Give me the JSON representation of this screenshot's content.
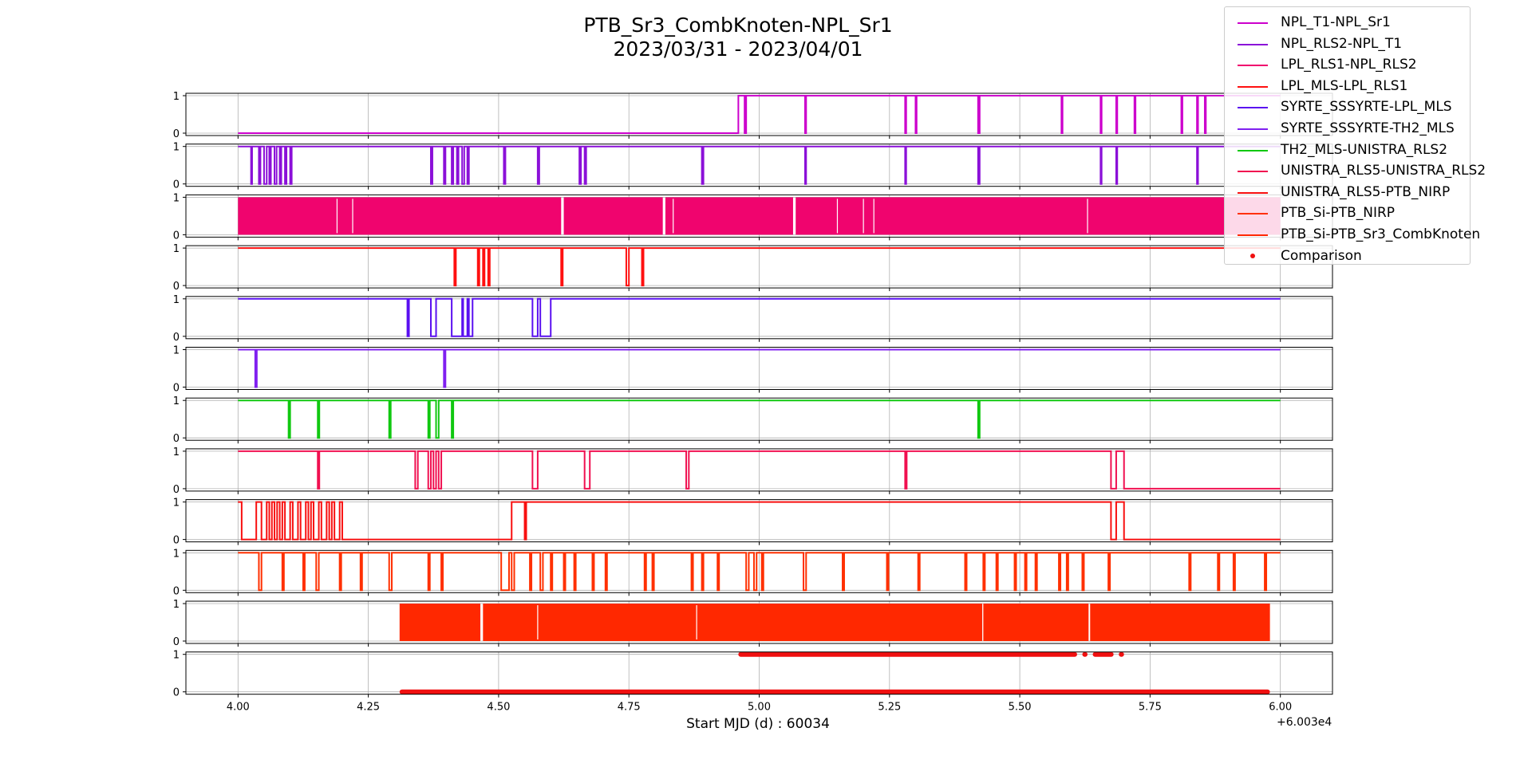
{
  "chart_data": {
    "type": "line",
    "title_line1": "PTB_Sr3_CombKnoten-NPL_Sr1",
    "title_line2": "2023/03/31 - 2023/04/01",
    "xlabel": "Start MJD (d) : 60034",
    "x_offset_label": "+6.003e4",
    "xlim": [
      3.9,
      6.1
    ],
    "x_ticks": [
      "4.00",
      "4.25",
      "4.50",
      "4.75",
      "5.00",
      "5.25",
      "5.50",
      "5.75",
      "6.00"
    ],
    "x_tick_values": [
      4.0,
      4.25,
      4.5,
      4.75,
      5.0,
      5.25,
      5.5,
      5.75,
      6.0
    ],
    "ylim": [
      0,
      1
    ],
    "y_ticks": [
      "0",
      "1"
    ],
    "grid": true,
    "legend_placement": "top-right",
    "series": [
      {
        "name": "NPL_T1-NPL_Sr1",
        "color": "#cc00cc",
        "style": "step",
        "segments": [
          [
            4.0,
            0
          ],
          [
            4.96,
            1
          ],
          [
            4.972,
            0
          ],
          [
            4.975,
            1
          ],
          [
            5.088,
            0
          ],
          [
            5.09,
            1
          ],
          [
            5.28,
            0
          ],
          [
            5.282,
            1
          ],
          [
            5.3,
            0
          ],
          [
            5.302,
            1
          ],
          [
            5.42,
            0
          ],
          [
            5.423,
            1
          ],
          [
            5.58,
            0
          ],
          [
            5.582,
            1
          ],
          [
            5.655,
            0
          ],
          [
            5.657,
            1
          ],
          [
            5.685,
            0
          ],
          [
            5.687,
            1
          ],
          [
            5.72,
            0
          ],
          [
            5.722,
            1
          ],
          [
            5.81,
            0
          ],
          [
            5.812,
            1
          ],
          [
            5.84,
            0
          ],
          [
            5.842,
            1
          ],
          [
            5.855,
            0
          ],
          [
            5.857,
            1
          ],
          [
            6.0,
            1
          ]
        ]
      },
      {
        "name": "NPL_RLS2-NPL_T1",
        "color": "#8b10d8",
        "style": "step",
        "segments": [
          [
            4.0,
            1
          ],
          [
            4.025,
            0
          ],
          [
            4.027,
            1
          ],
          [
            4.04,
            0
          ],
          [
            4.043,
            1
          ],
          [
            4.05,
            0
          ],
          [
            4.055,
            1
          ],
          [
            4.06,
            0
          ],
          [
            4.063,
            1
          ],
          [
            4.07,
            0
          ],
          [
            4.074,
            1
          ],
          [
            4.08,
            0
          ],
          [
            4.083,
            1
          ],
          [
            4.09,
            0
          ],
          [
            4.093,
            1
          ],
          [
            4.1,
            0
          ],
          [
            4.103,
            1
          ],
          [
            4.37,
            0
          ],
          [
            4.373,
            1
          ],
          [
            4.395,
            0
          ],
          [
            4.398,
            1
          ],
          [
            4.41,
            0
          ],
          [
            4.413,
            1
          ],
          [
            4.42,
            0
          ],
          [
            4.423,
            1
          ],
          [
            4.43,
            0
          ],
          [
            4.434,
            1
          ],
          [
            4.44,
            0
          ],
          [
            4.443,
            1
          ],
          [
            4.51,
            0
          ],
          [
            4.513,
            1
          ],
          [
            4.575,
            0
          ],
          [
            4.578,
            1
          ],
          [
            4.655,
            0
          ],
          [
            4.658,
            1
          ],
          [
            4.665,
            0
          ],
          [
            4.668,
            1
          ],
          [
            4.89,
            0
          ],
          [
            4.893,
            1
          ],
          [
            5.088,
            0
          ],
          [
            5.09,
            1
          ],
          [
            5.28,
            0
          ],
          [
            5.282,
            1
          ],
          [
            5.42,
            0
          ],
          [
            5.423,
            1
          ],
          [
            5.655,
            0
          ],
          [
            5.657,
            1
          ],
          [
            5.685,
            0
          ],
          [
            5.687,
            1
          ],
          [
            5.84,
            0
          ],
          [
            5.842,
            1
          ],
          [
            6.0,
            1
          ]
        ]
      },
      {
        "name": "LPL_RLS1-NPL_RLS2",
        "color": "#f0046e",
        "style": "band",
        "bands": [
          [
            4.0,
            4.62
          ],
          [
            4.625,
            4.815
          ],
          [
            4.82,
            5.065
          ],
          [
            5.07,
            6.0
          ]
        ],
        "gaps": [
          4.19,
          4.22,
          4.835,
          5.15,
          5.2,
          5.22,
          5.63
        ]
      },
      {
        "name": "LPL_MLS-LPL_RLS1",
        "color": "#ff1010",
        "style": "step",
        "segments": [
          [
            4.0,
            1
          ],
          [
            4.415,
            0
          ],
          [
            4.418,
            1
          ],
          [
            4.46,
            0
          ],
          [
            4.463,
            1
          ],
          [
            4.47,
            0
          ],
          [
            4.473,
            1
          ],
          [
            4.48,
            0
          ],
          [
            4.483,
            1
          ],
          [
            4.62,
            0
          ],
          [
            4.623,
            1
          ],
          [
            4.745,
            0
          ],
          [
            4.75,
            1
          ],
          [
            4.775,
            0
          ],
          [
            4.778,
            1
          ],
          [
            6.0,
            1
          ]
        ]
      },
      {
        "name": "SYRTE_SSSYRTE-LPL_MLS",
        "color": "#5a10f0",
        "style": "step",
        "segments": [
          [
            4.0,
            1
          ],
          [
            4.325,
            0
          ],
          [
            4.328,
            1
          ],
          [
            4.37,
            0
          ],
          [
            4.38,
            1
          ],
          [
            4.41,
            0
          ],
          [
            4.43,
            1
          ],
          [
            4.432,
            0
          ],
          [
            4.44,
            1
          ],
          [
            4.443,
            0
          ],
          [
            4.45,
            1
          ],
          [
            4.565,
            0
          ],
          [
            4.575,
            1
          ],
          [
            4.58,
            0
          ],
          [
            4.6,
            1
          ],
          [
            6.0,
            1
          ]
        ]
      },
      {
        "name": "SYRTE_SSSYRTE-TH2_MLS",
        "color": "#8020f0",
        "style": "step",
        "segments": [
          [
            4.0,
            1
          ],
          [
            4.033,
            0
          ],
          [
            4.036,
            1
          ],
          [
            4.395,
            0
          ],
          [
            4.398,
            1
          ],
          [
            6.0,
            1
          ]
        ]
      },
      {
        "name": "TH2_MLS-UNISTRA_RLS2",
        "color": "#10c810",
        "style": "step",
        "segments": [
          [
            4.0,
            1
          ],
          [
            4.097,
            0
          ],
          [
            4.1,
            1
          ],
          [
            4.153,
            0
          ],
          [
            4.156,
            1
          ],
          [
            4.29,
            0
          ],
          [
            4.293,
            1
          ],
          [
            4.365,
            0
          ],
          [
            4.368,
            1
          ],
          [
            4.38,
            0
          ],
          [
            4.385,
            1
          ],
          [
            4.41,
            0
          ],
          [
            4.413,
            1
          ],
          [
            5.42,
            0
          ],
          [
            5.423,
            1
          ],
          [
            6.0,
            1
          ]
        ]
      },
      {
        "name": "UNISTRA_RLS5-UNISTRA_RLS2",
        "color": "#f01050",
        "style": "step",
        "segments": [
          [
            4.0,
            1
          ],
          [
            4.153,
            0
          ],
          [
            4.156,
            1
          ],
          [
            4.34,
            0
          ],
          [
            4.345,
            1
          ],
          [
            4.365,
            0
          ],
          [
            4.37,
            1
          ],
          [
            4.375,
            0
          ],
          [
            4.38,
            1
          ],
          [
            4.385,
            0
          ],
          [
            4.39,
            1
          ],
          [
            4.565,
            0
          ],
          [
            4.575,
            1
          ],
          [
            4.665,
            0
          ],
          [
            4.675,
            1
          ],
          [
            4.86,
            0
          ],
          [
            4.865,
            1
          ],
          [
            5.28,
            0
          ],
          [
            5.283,
            1
          ],
          [
            5.675,
            0
          ],
          [
            5.685,
            1
          ],
          [
            5.7,
            0
          ],
          [
            6.0,
            0
          ]
        ]
      },
      {
        "name": "UNISTRA_RLS5-PTB_NIRP",
        "color": "#f81010",
        "style": "step",
        "segments": [
          [
            4.0,
            1
          ],
          [
            4.007,
            0
          ],
          [
            4.035,
            1
          ],
          [
            4.045,
            0
          ],
          [
            4.055,
            1
          ],
          [
            4.06,
            0
          ],
          [
            4.065,
            1
          ],
          [
            4.07,
            0
          ],
          [
            4.075,
            1
          ],
          [
            4.08,
            0
          ],
          [
            4.085,
            1
          ],
          [
            4.09,
            0
          ],
          [
            4.1,
            1
          ],
          [
            4.105,
            0
          ],
          [
            4.115,
            1
          ],
          [
            4.12,
            0
          ],
          [
            4.13,
            1
          ],
          [
            4.135,
            0
          ],
          [
            4.14,
            1
          ],
          [
            4.145,
            0
          ],
          [
            4.155,
            1
          ],
          [
            4.16,
            0
          ],
          [
            4.17,
            1
          ],
          [
            4.175,
            0
          ],
          [
            4.18,
            1
          ],
          [
            4.185,
            0
          ],
          [
            4.195,
            1
          ],
          [
            4.2,
            0
          ],
          [
            4.525,
            1
          ],
          [
            4.55,
            0
          ],
          [
            4.553,
            1
          ],
          [
            5.675,
            0
          ],
          [
            5.685,
            1
          ],
          [
            5.7,
            0
          ],
          [
            6.0,
            0
          ]
        ]
      },
      {
        "name": "PTB_Si-PTB_NIRP",
        "color": "#ff3000",
        "style": "step",
        "segments": [
          [
            4.0,
            1
          ],
          [
            4.04,
            0
          ],
          [
            4.045,
            1
          ],
          [
            4.085,
            0
          ],
          [
            4.088,
            1
          ],
          [
            4.125,
            0
          ],
          [
            4.128,
            1
          ],
          [
            4.15,
            0
          ],
          [
            4.155,
            1
          ],
          [
            4.195,
            0
          ],
          [
            4.198,
            1
          ],
          [
            4.235,
            0
          ],
          [
            4.238,
            1
          ],
          [
            4.29,
            0
          ],
          [
            4.295,
            1
          ],
          [
            4.365,
            0
          ],
          [
            4.368,
            1
          ],
          [
            4.39,
            0
          ],
          [
            4.393,
            1
          ],
          [
            4.505,
            0
          ],
          [
            4.52,
            1
          ],
          [
            4.525,
            0
          ],
          [
            4.53,
            1
          ],
          [
            4.56,
            0
          ],
          [
            4.563,
            1
          ],
          [
            4.58,
            0
          ],
          [
            4.585,
            1
          ],
          [
            4.6,
            0
          ],
          [
            4.603,
            1
          ],
          [
            4.625,
            0
          ],
          [
            4.628,
            1
          ],
          [
            4.645,
            0
          ],
          [
            4.648,
            1
          ],
          [
            4.68,
            0
          ],
          [
            4.683,
            1
          ],
          [
            4.705,
            0
          ],
          [
            4.708,
            1
          ],
          [
            4.78,
            0
          ],
          [
            4.783,
            1
          ],
          [
            4.795,
            0
          ],
          [
            4.798,
            1
          ],
          [
            4.87,
            0
          ],
          [
            4.873,
            1
          ],
          [
            4.89,
            0
          ],
          [
            4.893,
            1
          ],
          [
            4.92,
            0
          ],
          [
            4.923,
            1
          ],
          [
            4.975,
            0
          ],
          [
            4.98,
            1
          ],
          [
            4.99,
            0
          ],
          [
            4.995,
            1
          ],
          [
            5.005,
            0
          ],
          [
            5.008,
            1
          ],
          [
            5.085,
            0
          ],
          [
            5.09,
            1
          ],
          [
            5.16,
            0
          ],
          [
            5.163,
            1
          ],
          [
            5.245,
            0
          ],
          [
            5.248,
            1
          ],
          [
            5.305,
            0
          ],
          [
            5.308,
            1
          ],
          [
            5.395,
            0
          ],
          [
            5.398,
            1
          ],
          [
            5.43,
            0
          ],
          [
            5.433,
            1
          ],
          [
            5.455,
            0
          ],
          [
            5.458,
            1
          ],
          [
            5.49,
            0
          ],
          [
            5.493,
            1
          ],
          [
            5.51,
            0
          ],
          [
            5.513,
            1
          ],
          [
            5.53,
            0
          ],
          [
            5.533,
            1
          ],
          [
            5.575,
            0
          ],
          [
            5.578,
            1
          ],
          [
            5.59,
            0
          ],
          [
            5.593,
            1
          ],
          [
            5.62,
            0
          ],
          [
            5.623,
            1
          ],
          [
            5.67,
            0
          ],
          [
            5.673,
            1
          ],
          [
            5.825,
            0
          ],
          [
            5.828,
            1
          ],
          [
            5.88,
            0
          ],
          [
            5.883,
            1
          ],
          [
            5.91,
            0
          ],
          [
            5.913,
            1
          ],
          [
            5.97,
            0
          ],
          [
            5.973,
            1
          ],
          [
            6.0,
            1
          ]
        ]
      },
      {
        "name": "PTB_Si-PTB_Sr3_CombKnoten",
        "color": "#ff2800",
        "style": "band",
        "bands": [
          [
            4.31,
            4.465
          ],
          [
            4.47,
            5.428
          ],
          [
            5.43,
            5.632
          ],
          [
            5.635,
            5.98
          ]
        ],
        "gaps": [
          4.575,
          4.88
        ]
      },
      {
        "name": "Comparison",
        "color": "#f01010",
        "style": "dots",
        "bands": [
          [
            4.31,
            5.98
          ]
        ],
        "top_bands": [
          [
            4.96,
            5.61
          ],
          [
            5.62,
            5.63
          ],
          [
            5.64,
            5.68
          ],
          [
            5.69,
            5.7
          ]
        ]
      }
    ]
  }
}
